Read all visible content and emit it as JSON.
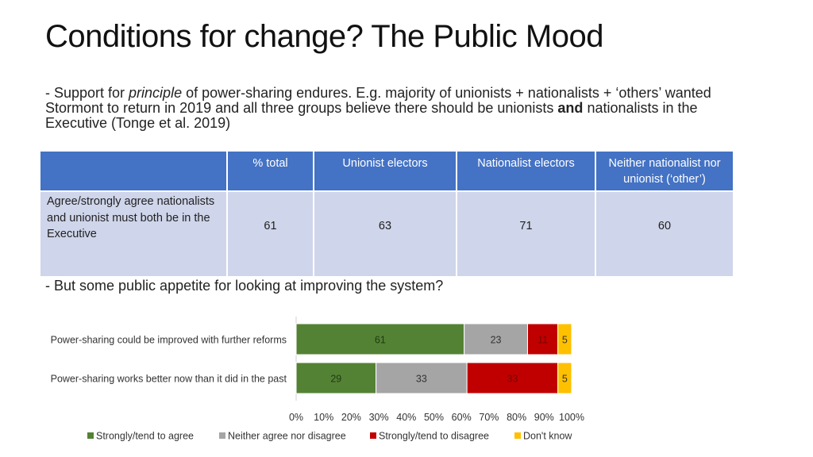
{
  "slide": {
    "title": "Conditions for change? The Public Mood",
    "bullet1": {
      "part1": "- Support for ",
      "italic": "principle",
      "part2": " of power-sharing endures. E.g. majority of unionists + nationalists + ‘others’ wanted Stormont to return in 2019 and all three groups believe there should be unionists ",
      "bold": "and",
      "part3": " nationalists in the Executive (Tonge et al. 2019)"
    },
    "bullet2": "- But some public appetite for looking at improving the system?"
  },
  "table": {
    "headers": [
      "",
      "% total",
      "Unionist electors",
      "Nationalist electors",
      "Neither nationalist nor unionist (‘other’)"
    ],
    "row_label": "Agree/strongly agree nationalists and unionist must both be in the Executive",
    "values": [
      "61",
      "63",
      "71",
      "60"
    ]
  },
  "chart_data": {
    "type": "bar",
    "orientation": "horizontal",
    "stacked": true,
    "categories": [
      "Power-sharing could be improved with further reforms",
      "Power-sharing works better now than it did in the past"
    ],
    "series": [
      {
        "name": "Strongly/tend to agree",
        "color": "#548235",
        "values": [
          61,
          29
        ]
      },
      {
        "name": "Neither agree nor disagree",
        "color": "#a5a5a5",
        "values": [
          23,
          33
        ]
      },
      {
        "name": "Strongly/tend to disagree",
        "color": "#c00000",
        "values": [
          11,
          33
        ]
      },
      {
        "name": "Don't know",
        "color": "#ffc000",
        "values": [
          5,
          5
        ]
      }
    ],
    "xlim": [
      0,
      100
    ],
    "xticks": [
      "0%",
      "10%",
      "20%",
      "30%",
      "40%",
      "50%",
      "60%",
      "70%",
      "80%",
      "90%",
      "100%"
    ],
    "legend": "bottom",
    "grid": false
  }
}
